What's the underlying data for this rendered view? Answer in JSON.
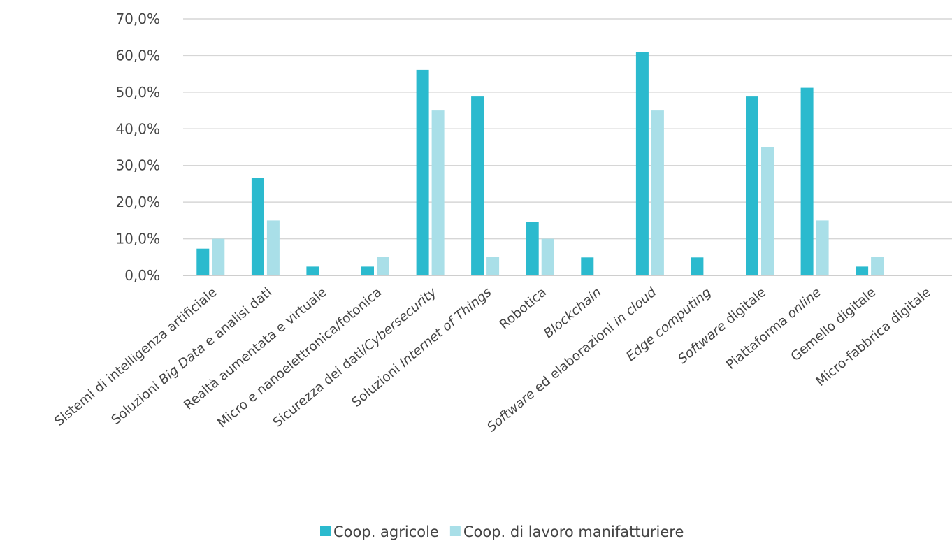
{
  "chart_data": {
    "type": "bar",
    "title": "",
    "xlabel": "",
    "ylabel": "",
    "ylim": [
      0,
      70
    ],
    "y_ticks": [
      "0,0%",
      "10,0%",
      "20,0%",
      "30,0%",
      "40,0%",
      "50,0%",
      "60,0%",
      "70,0%"
    ],
    "y_tick_values": [
      0,
      10,
      20,
      30,
      40,
      50,
      60,
      70
    ],
    "grid": "horizontal",
    "legend_position": "bottom",
    "categories": [
      [
        {
          "t": "Sistemi di intelligenza artificiale",
          "i": false
        }
      ],
      [
        {
          "t": "Soluzioni ",
          "i": false
        },
        {
          "t": "Big Data",
          "i": true
        },
        {
          "t": " e analisi dati",
          "i": false
        }
      ],
      [
        {
          "t": "Realtà aumentata e virtuale",
          "i": false
        }
      ],
      [
        {
          "t": "Micro e nanoelettronica/fotonica",
          "i": false
        }
      ],
      [
        {
          "t": "Sicurezza dei dati/",
          "i": false
        },
        {
          "t": "Cybersecurity",
          "i": true
        }
      ],
      [
        {
          "t": "Soluzioni ",
          "i": false
        },
        {
          "t": "Internet of Things",
          "i": true
        }
      ],
      [
        {
          "t": "Robotica",
          "i": false
        }
      ],
      [
        {
          "t": "Blockchain",
          "i": true
        }
      ],
      [
        {
          "t": "Software",
          "i": true
        },
        {
          "t": " ed elaborazioni ",
          "i": false
        },
        {
          "t": "in cloud",
          "i": true
        }
      ],
      [
        {
          "t": "Edge computing",
          "i": true
        }
      ],
      [
        {
          "t": "Software",
          "i": true
        },
        {
          "t": " digitale",
          "i": false
        }
      ],
      [
        {
          "t": "Piattaforma ",
          "i": false
        },
        {
          "t": "online",
          "i": true
        }
      ],
      [
        {
          "t": "Gemello digitale",
          "i": false
        }
      ],
      [
        {
          "t": "Micro-fabbrica digitale",
          "i": false
        }
      ]
    ],
    "series": [
      {
        "name": "Coop. agricole",
        "color": "#2bbace",
        "values": [
          7.3,
          26.6,
          2.4,
          2.4,
          56.1,
          48.8,
          14.6,
          4.9,
          61.0,
          4.9,
          48.8,
          51.2,
          2.4,
          0
        ]
      },
      {
        "name": "Coop. di lavoro manifatturiere",
        "color": "#a9dfe8",
        "values": [
          10.0,
          15.0,
          0,
          5.0,
          45.0,
          5.0,
          10.0,
          0,
          45.0,
          0,
          35.0,
          15.0,
          5.0,
          0
        ]
      }
    ]
  }
}
